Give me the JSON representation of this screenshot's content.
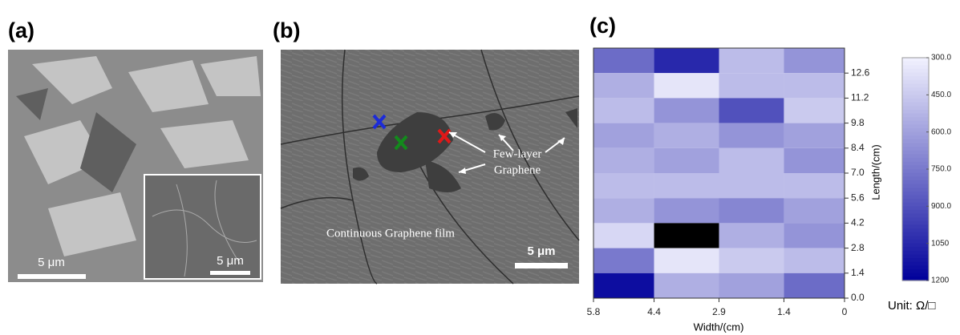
{
  "panels": {
    "a": {
      "label": "(a)",
      "scale_bar": "5 μm",
      "inset_scale_bar": "5 μm"
    },
    "b": {
      "label": "(b)",
      "annotation": [
        "Few-layer",
        "Graphene"
      ],
      "film_label": "Continuous Graphene film",
      "scale_bar": "5 μm"
    },
    "c": {
      "label": "(c)"
    }
  },
  "chart_data": {
    "type": "heatmap",
    "xlabel": "Width/(cm)",
    "ylabel": "Length/(cm)",
    "xlim": [
      5.8,
      0
    ],
    "xticks": [
      5.8,
      4.4,
      2.9,
      1.4,
      0
    ],
    "ylim": [
      0,
      14
    ],
    "yticks": [
      {
        "value": 0,
        "label": "0.0"
      },
      1.4,
      2.8,
      4.2,
      5.6,
      {
        "value": 7,
        "label": "7.0"
      },
      8.4,
      9.8,
      11.2,
      12.6
    ],
    "values": [
      [
        800,
        1050,
        500,
        650
      ],
      [
        550,
        350,
        500,
        500
      ],
      [
        500,
        650,
        900,
        450
      ],
      [
        600,
        550,
        650,
        600
      ],
      [
        550,
        600,
        500,
        650
      ],
      [
        500,
        500,
        500,
        500
      ],
      [
        550,
        650,
        700,
        600
      ],
      [
        400,
        null,
        550,
        650
      ],
      [
        750,
        350,
        450,
        500
      ],
      [
        1150,
        550,
        600,
        800
      ]
    ],
    "colors": [
      "#f2f2ff",
      "#00009a"
    ],
    "missing_color": "#000000",
    "colorbar": {
      "lim": [
        300,
        1200
      ],
      "ticks": [
        {
          "value": 300,
          "label": "300.0"
        },
        {
          "value": 450,
          "label": "450.0"
        },
        {
          "value": 600,
          "label": "600.0"
        },
        {
          "value": 750,
          "label": "750.0"
        },
        {
          "value": 900,
          "label": "900.0"
        },
        1050,
        1200
      ],
      "unit": "Unit: Ω/□"
    }
  }
}
